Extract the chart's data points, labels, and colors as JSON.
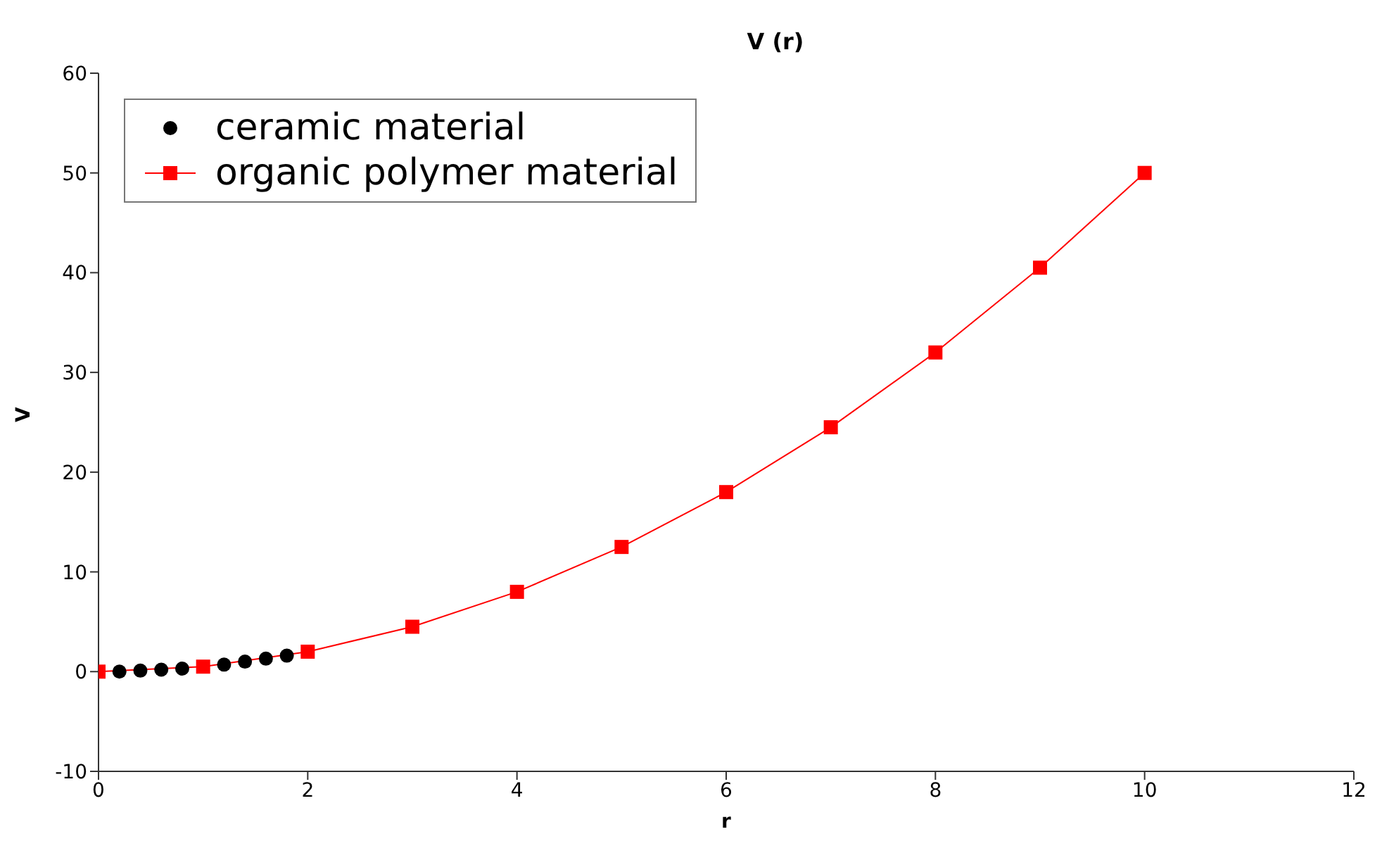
{
  "chart_data": {
    "type": "line",
    "title": "V (r)",
    "xlabel": "r",
    "ylabel": "V",
    "xlim": [
      0,
      12
    ],
    "xticks": [
      0,
      2,
      4,
      6,
      8,
      10,
      12
    ],
    "ylim": [
      -10,
      60
    ],
    "yticks": [
      -10,
      0,
      10,
      20,
      30,
      40,
      50,
      60
    ],
    "grid": false,
    "legend": "top left",
    "series": [
      {
        "name": "ceramic material",
        "type": "scatter",
        "marker": "circle",
        "color": "#000000",
        "x": [
          0.2,
          0.4,
          0.6,
          0.8,
          1.2,
          1.4,
          1.6,
          1.8
        ],
        "values": [
          0.0,
          0.1,
          0.2,
          0.3,
          0.7,
          1.0,
          1.3,
          1.6
        ]
      },
      {
        "name": "organic polymer material",
        "type": "line",
        "marker": "square",
        "line_style": "solid",
        "color": "#ff0000",
        "x": [
          0,
          1,
          2,
          3,
          4,
          5,
          6,
          7,
          8,
          9,
          10
        ],
        "values": [
          0,
          0.5,
          2,
          4.5,
          8,
          12.5,
          18,
          24.5,
          32,
          40.5,
          50
        ]
      }
    ]
  }
}
